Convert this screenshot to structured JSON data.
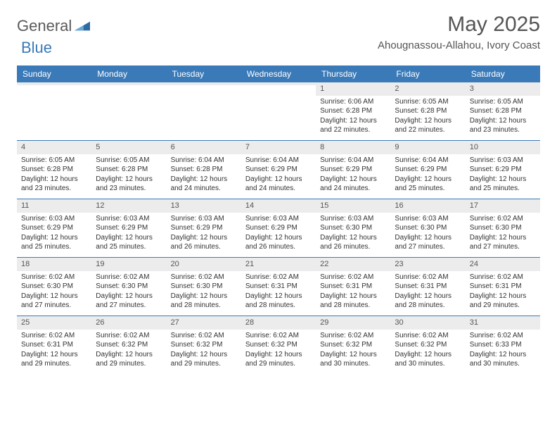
{
  "logo": {
    "word1": "General",
    "word2": "Blue"
  },
  "title": "May 2025",
  "location": "Ahougnassou-Allahou, Ivory Coast",
  "colors": {
    "header_bg": "#3a7ab8",
    "header_fg": "#ffffff",
    "daynum_bg": "#ececec",
    "rule": "#3a7ab8",
    "text": "#333333",
    "title_fg": "#555555"
  },
  "day_names": [
    "Sunday",
    "Monday",
    "Tuesday",
    "Wednesday",
    "Thursday",
    "Friday",
    "Saturday"
  ],
  "weeks": [
    [
      {
        "n": "",
        "sr": "",
        "ss": "",
        "dl1": "",
        "dl2": ""
      },
      {
        "n": "",
        "sr": "",
        "ss": "",
        "dl1": "",
        "dl2": ""
      },
      {
        "n": "",
        "sr": "",
        "ss": "",
        "dl1": "",
        "dl2": ""
      },
      {
        "n": "",
        "sr": "",
        "ss": "",
        "dl1": "",
        "dl2": ""
      },
      {
        "n": "1",
        "sr": "Sunrise: 6:06 AM",
        "ss": "Sunset: 6:28 PM",
        "dl1": "Daylight: 12 hours",
        "dl2": "and 22 minutes."
      },
      {
        "n": "2",
        "sr": "Sunrise: 6:05 AM",
        "ss": "Sunset: 6:28 PM",
        "dl1": "Daylight: 12 hours",
        "dl2": "and 22 minutes."
      },
      {
        "n": "3",
        "sr": "Sunrise: 6:05 AM",
        "ss": "Sunset: 6:28 PM",
        "dl1": "Daylight: 12 hours",
        "dl2": "and 23 minutes."
      }
    ],
    [
      {
        "n": "4",
        "sr": "Sunrise: 6:05 AM",
        "ss": "Sunset: 6:28 PM",
        "dl1": "Daylight: 12 hours",
        "dl2": "and 23 minutes."
      },
      {
        "n": "5",
        "sr": "Sunrise: 6:05 AM",
        "ss": "Sunset: 6:28 PM",
        "dl1": "Daylight: 12 hours",
        "dl2": "and 23 minutes."
      },
      {
        "n": "6",
        "sr": "Sunrise: 6:04 AM",
        "ss": "Sunset: 6:28 PM",
        "dl1": "Daylight: 12 hours",
        "dl2": "and 24 minutes."
      },
      {
        "n": "7",
        "sr": "Sunrise: 6:04 AM",
        "ss": "Sunset: 6:29 PM",
        "dl1": "Daylight: 12 hours",
        "dl2": "and 24 minutes."
      },
      {
        "n": "8",
        "sr": "Sunrise: 6:04 AM",
        "ss": "Sunset: 6:29 PM",
        "dl1": "Daylight: 12 hours",
        "dl2": "and 24 minutes."
      },
      {
        "n": "9",
        "sr": "Sunrise: 6:04 AM",
        "ss": "Sunset: 6:29 PM",
        "dl1": "Daylight: 12 hours",
        "dl2": "and 25 minutes."
      },
      {
        "n": "10",
        "sr": "Sunrise: 6:03 AM",
        "ss": "Sunset: 6:29 PM",
        "dl1": "Daylight: 12 hours",
        "dl2": "and 25 minutes."
      }
    ],
    [
      {
        "n": "11",
        "sr": "Sunrise: 6:03 AM",
        "ss": "Sunset: 6:29 PM",
        "dl1": "Daylight: 12 hours",
        "dl2": "and 25 minutes."
      },
      {
        "n": "12",
        "sr": "Sunrise: 6:03 AM",
        "ss": "Sunset: 6:29 PM",
        "dl1": "Daylight: 12 hours",
        "dl2": "and 25 minutes."
      },
      {
        "n": "13",
        "sr": "Sunrise: 6:03 AM",
        "ss": "Sunset: 6:29 PM",
        "dl1": "Daylight: 12 hours",
        "dl2": "and 26 minutes."
      },
      {
        "n": "14",
        "sr": "Sunrise: 6:03 AM",
        "ss": "Sunset: 6:29 PM",
        "dl1": "Daylight: 12 hours",
        "dl2": "and 26 minutes."
      },
      {
        "n": "15",
        "sr": "Sunrise: 6:03 AM",
        "ss": "Sunset: 6:30 PM",
        "dl1": "Daylight: 12 hours",
        "dl2": "and 26 minutes."
      },
      {
        "n": "16",
        "sr": "Sunrise: 6:03 AM",
        "ss": "Sunset: 6:30 PM",
        "dl1": "Daylight: 12 hours",
        "dl2": "and 27 minutes."
      },
      {
        "n": "17",
        "sr": "Sunrise: 6:02 AM",
        "ss": "Sunset: 6:30 PM",
        "dl1": "Daylight: 12 hours",
        "dl2": "and 27 minutes."
      }
    ],
    [
      {
        "n": "18",
        "sr": "Sunrise: 6:02 AM",
        "ss": "Sunset: 6:30 PM",
        "dl1": "Daylight: 12 hours",
        "dl2": "and 27 minutes."
      },
      {
        "n": "19",
        "sr": "Sunrise: 6:02 AM",
        "ss": "Sunset: 6:30 PM",
        "dl1": "Daylight: 12 hours",
        "dl2": "and 27 minutes."
      },
      {
        "n": "20",
        "sr": "Sunrise: 6:02 AM",
        "ss": "Sunset: 6:30 PM",
        "dl1": "Daylight: 12 hours",
        "dl2": "and 28 minutes."
      },
      {
        "n": "21",
        "sr": "Sunrise: 6:02 AM",
        "ss": "Sunset: 6:31 PM",
        "dl1": "Daylight: 12 hours",
        "dl2": "and 28 minutes."
      },
      {
        "n": "22",
        "sr": "Sunrise: 6:02 AM",
        "ss": "Sunset: 6:31 PM",
        "dl1": "Daylight: 12 hours",
        "dl2": "and 28 minutes."
      },
      {
        "n": "23",
        "sr": "Sunrise: 6:02 AM",
        "ss": "Sunset: 6:31 PM",
        "dl1": "Daylight: 12 hours",
        "dl2": "and 28 minutes."
      },
      {
        "n": "24",
        "sr": "Sunrise: 6:02 AM",
        "ss": "Sunset: 6:31 PM",
        "dl1": "Daylight: 12 hours",
        "dl2": "and 29 minutes."
      }
    ],
    [
      {
        "n": "25",
        "sr": "Sunrise: 6:02 AM",
        "ss": "Sunset: 6:31 PM",
        "dl1": "Daylight: 12 hours",
        "dl2": "and 29 minutes."
      },
      {
        "n": "26",
        "sr": "Sunrise: 6:02 AM",
        "ss": "Sunset: 6:32 PM",
        "dl1": "Daylight: 12 hours",
        "dl2": "and 29 minutes."
      },
      {
        "n": "27",
        "sr": "Sunrise: 6:02 AM",
        "ss": "Sunset: 6:32 PM",
        "dl1": "Daylight: 12 hours",
        "dl2": "and 29 minutes."
      },
      {
        "n": "28",
        "sr": "Sunrise: 6:02 AM",
        "ss": "Sunset: 6:32 PM",
        "dl1": "Daylight: 12 hours",
        "dl2": "and 29 minutes."
      },
      {
        "n": "29",
        "sr": "Sunrise: 6:02 AM",
        "ss": "Sunset: 6:32 PM",
        "dl1": "Daylight: 12 hours",
        "dl2": "and 30 minutes."
      },
      {
        "n": "30",
        "sr": "Sunrise: 6:02 AM",
        "ss": "Sunset: 6:32 PM",
        "dl1": "Daylight: 12 hours",
        "dl2": "and 30 minutes."
      },
      {
        "n": "31",
        "sr": "Sunrise: 6:02 AM",
        "ss": "Sunset: 6:33 PM",
        "dl1": "Daylight: 12 hours",
        "dl2": "and 30 minutes."
      }
    ]
  ]
}
